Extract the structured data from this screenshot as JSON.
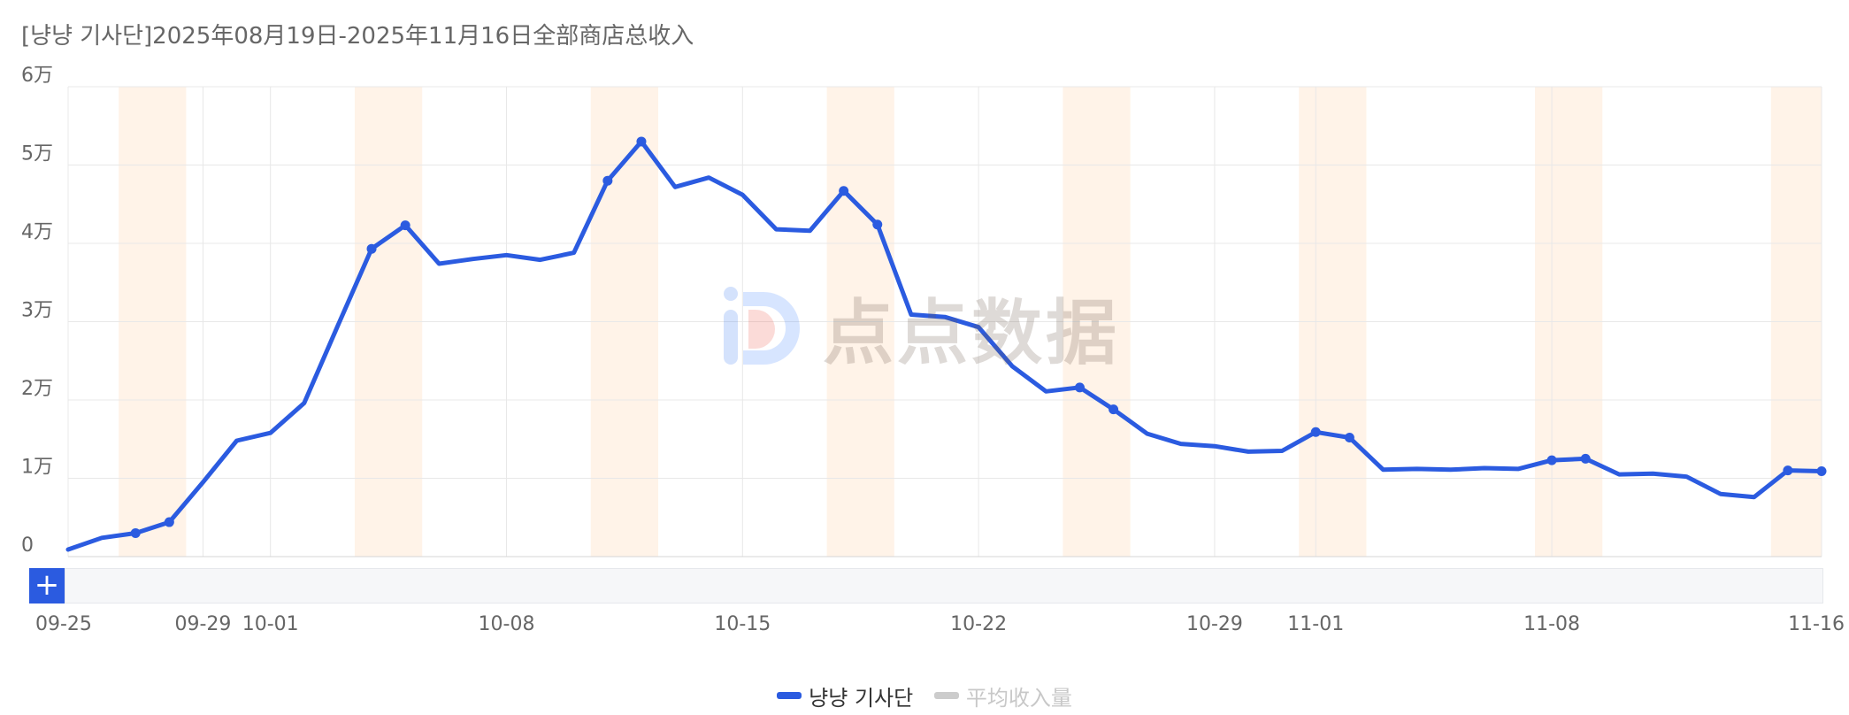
{
  "title": "[냥냥 기사단]2025年08月19日-2025年11月16日全部商店总收入",
  "watermark": {
    "text": "点点数据",
    "icon": "diandian-logo-icon"
  },
  "legend": [
    {
      "label": "냥냥 기사단",
      "color": "#2b5be0",
      "active": true
    },
    {
      "label": "平均收入量",
      "color": "#cccccc",
      "active": false
    }
  ],
  "scrollbar": {
    "button_label": "+",
    "icon": "plus-icon"
  },
  "chart_data": {
    "type": "line",
    "title": "[냥냥 기사단]2025年08月19日-2025年11月16日全部商店总收入",
    "xlabel": "",
    "ylabel": "",
    "y_ticks": [
      "0",
      "1万",
      "2万",
      "3万",
      "4万",
      "5万",
      "6万"
    ],
    "ylim": [
      0,
      60000
    ],
    "x_ticks": [
      "09-25",
      "09-29",
      "10-01",
      "10-08",
      "10-15",
      "10-22",
      "10-29",
      "11-01",
      "11-08",
      "11-16"
    ],
    "x_tick_dates": [
      "2025-09-25",
      "2025-09-29",
      "2025-10-01",
      "2025-10-08",
      "2025-10-15",
      "2025-10-22",
      "2025-10-29",
      "2025-11-01",
      "2025-11-08",
      "2025-11-16"
    ],
    "grid": true,
    "legend_position": "bottom-center",
    "weekend_highlight_color": "#fff3e8",
    "highlight_ranges": [
      [
        "2025-09-27",
        "2025-09-28"
      ],
      [
        "2025-10-04",
        "2025-10-05"
      ],
      [
        "2025-10-11",
        "2025-10-12"
      ],
      [
        "2025-10-18",
        "2025-10-19"
      ],
      [
        "2025-10-25",
        "2025-10-26"
      ],
      [
        "2025-11-01",
        "2025-11-02"
      ],
      [
        "2025-11-08",
        "2025-11-09"
      ],
      [
        "2025-11-15",
        "2025-11-16"
      ]
    ],
    "series": [
      {
        "name": "냥냥 기사단",
        "color": "#2b5be0",
        "x": [
          "2025-09-25",
          "2025-09-26",
          "2025-09-27",
          "2025-09-28",
          "2025-09-29",
          "2025-09-30",
          "2025-10-01",
          "2025-10-02",
          "2025-10-03",
          "2025-10-04",
          "2025-10-05",
          "2025-10-06",
          "2025-10-07",
          "2025-10-08",
          "2025-10-09",
          "2025-10-10",
          "2025-10-11",
          "2025-10-12",
          "2025-10-13",
          "2025-10-14",
          "2025-10-15",
          "2025-10-16",
          "2025-10-17",
          "2025-10-18",
          "2025-10-19",
          "2025-10-20",
          "2025-10-21",
          "2025-10-22",
          "2025-10-23",
          "2025-10-24",
          "2025-10-25",
          "2025-10-26",
          "2025-10-27",
          "2025-10-28",
          "2025-10-29",
          "2025-10-30",
          "2025-10-31",
          "2025-11-01",
          "2025-11-02",
          "2025-11-03",
          "2025-11-04",
          "2025-11-05",
          "2025-11-06",
          "2025-11-07",
          "2025-11-08",
          "2025-11-09",
          "2025-11-10",
          "2025-11-11",
          "2025-11-12",
          "2025-11-13",
          "2025-11-14",
          "2025-11-15",
          "2025-11-16"
        ],
        "values": [
          900,
          2400,
          3000,
          4400,
          9500,
          14800,
          15800,
          19600,
          29500,
          39300,
          42300,
          37400,
          38000,
          38500,
          37900,
          38800,
          48000,
          53000,
          47200,
          48400,
          46200,
          41800,
          41600,
          46700,
          42400,
          30900,
          30600,
          29300,
          24300,
          21100,
          21600,
          18800,
          15700,
          14400,
          14100,
          13400,
          13500,
          15900,
          15200,
          11100,
          11200,
          11100,
          11300,
          11200,
          12300,
          12500,
          10500,
          10600,
          10200,
          8000,
          7600,
          11000,
          10900
        ],
        "markers": [
          "2025-09-27",
          "2025-09-28",
          "2025-10-04",
          "2025-10-05",
          "2025-10-11",
          "2025-10-12",
          "2025-10-18",
          "2025-10-19",
          "2025-10-25",
          "2025-10-26",
          "2025-11-01",
          "2025-11-02",
          "2025-11-08",
          "2025-11-09",
          "2025-11-15",
          "2025-11-16"
        ]
      }
    ]
  }
}
